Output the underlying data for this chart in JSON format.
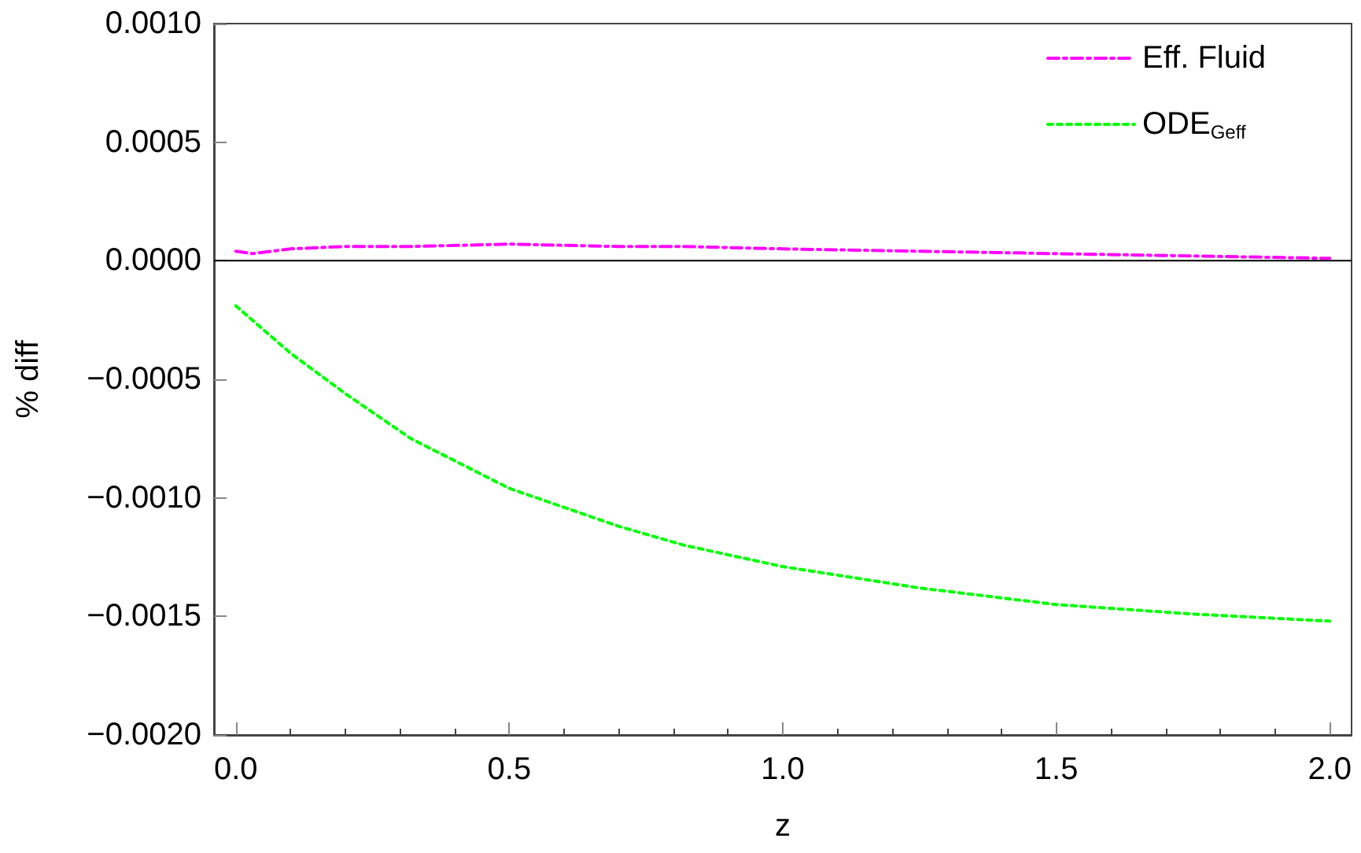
{
  "chart_data": {
    "type": "line",
    "xlabel": "z",
    "ylabel": "% diff",
    "x": [
      0,
      0.03,
      0.1,
      0.2,
      0.32,
      0.5,
      0.7,
      0.82,
      1.0,
      1.25,
      1.5,
      1.75,
      2.0
    ],
    "series": [
      {
        "name": "Eff. Fluid",
        "color": "#ff00ff",
        "line_style": "dashed",
        "values": [
          4e-05,
          3e-05,
          5e-05,
          6e-05,
          6e-05,
          7e-05,
          6e-05,
          6e-05,
          5e-05,
          4e-05,
          3e-05,
          2e-05,
          1e-05
        ]
      },
      {
        "name": "ODE$_{Geff}$",
        "color": "#00ff00",
        "line_style": "dotted",
        "values": [
          -0.00019,
          -0.00025,
          -0.00039,
          -0.00056,
          -0.00075,
          -0.00096,
          -0.00112,
          -0.0012,
          -0.00129,
          -0.00138,
          -0.00145,
          -0.00149,
          -0.00152
        ]
      }
    ],
    "xlim": [
      -0.04,
      2.04
    ],
    "xticks": [
      {
        "value": 0,
        "label": "0.0"
      },
      0.5,
      {
        "value": 1,
        "label": "1.0"
      },
      1.5,
      {
        "value": 2,
        "label": "2.0"
      }
    ],
    "ylim": [
      -0.002,
      0.001
    ],
    "yticks": [
      {
        "value": -0.002,
        "label": "−0.0020"
      },
      {
        "value": -0.0015,
        "label": "−0.0015"
      },
      {
        "value": -0.001,
        "label": "−0.0010"
      },
      {
        "value": -0.0005,
        "label": "−0.0005"
      },
      {
        "value": 0,
        "label": "0.0000"
      },
      {
        "value": 0.0005,
        "label": "0.0005"
      },
      {
        "value": 0.001,
        "label": "0.0010"
      }
    ],
    "ref_lines": [
      {
        "axis": "y",
        "value": 0,
        "color": "#000000"
      }
    ],
    "legend": "top right",
    "grid": false,
    "marker": "none"
  }
}
